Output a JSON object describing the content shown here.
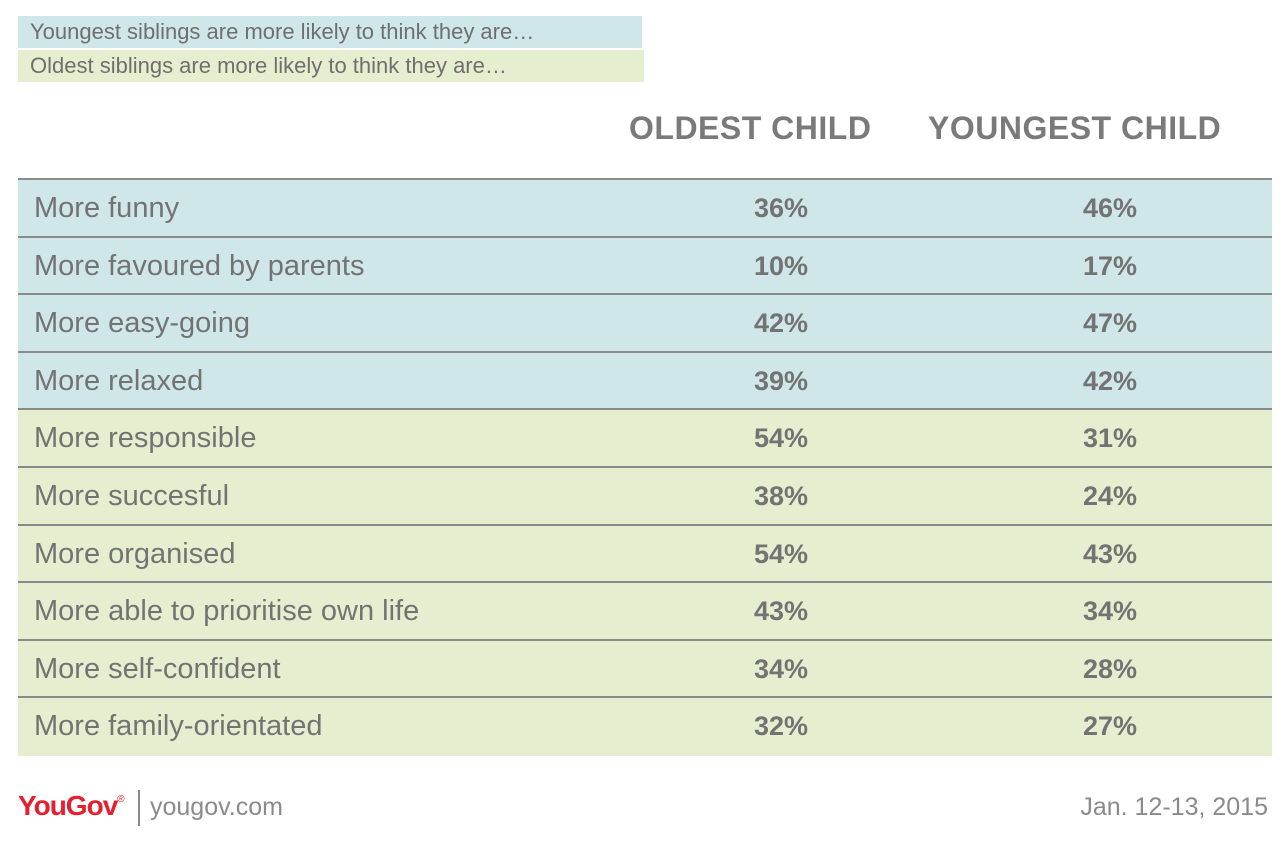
{
  "legend": {
    "youngest": "Youngest siblings are more likely to think they are…",
    "oldest": "Oldest siblings are more likely to think they are…"
  },
  "colors": {
    "youngest_bg": "#cfe7e8",
    "oldest_bg": "#e5efcf"
  },
  "chart_data": {
    "type": "table",
    "columns": [
      "OLDEST CHILD",
      "YOUNGEST CHILD"
    ],
    "rows": [
      {
        "label": "More funny",
        "oldest": "36%",
        "youngest": "46%",
        "group": "youngest"
      },
      {
        "label": "More favoured by parents",
        "oldest": "10%",
        "youngest": "17%",
        "group": "youngest"
      },
      {
        "label": "More easy-going",
        "oldest": "42%",
        "youngest": "47%",
        "group": "youngest"
      },
      {
        "label": "More relaxed",
        "oldest": "39%",
        "youngest": "42%",
        "group": "youngest"
      },
      {
        "label": "More responsible",
        "oldest": "54%",
        "youngest": "31%",
        "group": "oldest"
      },
      {
        "label": "More succesful",
        "oldest": "38%",
        "youngest": "24%",
        "group": "oldest"
      },
      {
        "label": "More organised",
        "oldest": "54%",
        "youngest": "43%",
        "group": "oldest"
      },
      {
        "label": "More able to prioritise own life",
        "oldest": "43%",
        "youngest": "34%",
        "group": "oldest"
      },
      {
        "label": "More self-confident",
        "oldest": "34%",
        "youngest": "28%",
        "group": "oldest"
      },
      {
        "label": "More family-orientated",
        "oldest": "32%",
        "youngest": "27%",
        "group": "oldest"
      }
    ]
  },
  "footer": {
    "logo": "YouGov",
    "logo_mark": "®",
    "site": "yougov.com",
    "date": "Jan. 12-13, 2015"
  }
}
